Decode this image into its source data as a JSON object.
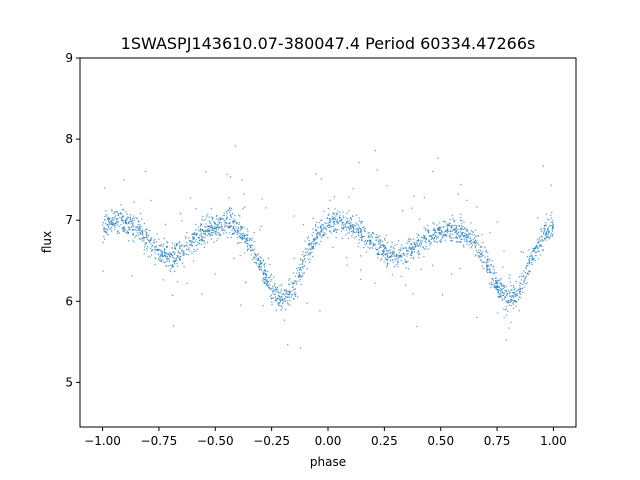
{
  "chart_data": {
    "type": "scatter",
    "title": "1SWASPJ143610.07-380047.4 Period 60334.47266s",
    "xlabel": "phase",
    "ylabel": "flux",
    "xlim": [
      -1.1,
      1.1
    ],
    "ylim": [
      4.45,
      9.0
    ],
    "xticks": [
      -1.0,
      -0.75,
      -0.5,
      -0.25,
      0.0,
      0.25,
      0.5,
      0.75,
      1.0
    ],
    "xtick_labels": [
      "−1.00",
      "−0.75",
      "−0.50",
      "−0.25",
      "0.00",
      "0.25",
      "0.50",
      "0.75",
      "1.00"
    ],
    "yticks": [
      5,
      6,
      7,
      8,
      9
    ],
    "ytick_labels": [
      "5",
      "6",
      "7",
      "8",
      "9"
    ],
    "grid": false,
    "legend": "none",
    "marker_color": "#1f77b4",
    "series": [
      {
        "x": [
          -1.0,
          -0.95,
          -0.9,
          -0.85,
          -0.8,
          -0.75,
          -0.7,
          -0.65,
          -0.6,
          -0.55,
          -0.5,
          -0.45,
          -0.4,
          -0.35,
          -0.3,
          -0.25,
          -0.2,
          -0.15,
          -0.1,
          -0.05,
          0.0,
          0.05,
          0.1,
          0.15,
          0.2,
          0.25,
          0.3,
          0.35,
          0.4,
          0.45,
          0.5,
          0.55,
          0.6,
          0.65,
          0.7,
          0.75,
          0.8,
          0.85,
          0.9,
          0.95,
          1.0
        ],
        "y": [
          6.9,
          7.0,
          7.0,
          6.9,
          6.75,
          6.6,
          6.55,
          6.6,
          6.75,
          6.85,
          6.9,
          6.95,
          6.9,
          6.7,
          6.45,
          6.15,
          6.0,
          6.15,
          6.55,
          6.85,
          6.95,
          7.0,
          6.95,
          6.85,
          6.7,
          6.6,
          6.55,
          6.6,
          6.7,
          6.8,
          6.85,
          6.9,
          6.85,
          6.75,
          6.5,
          6.2,
          6.0,
          6.15,
          6.5,
          6.8,
          6.95
        ]
      }
    ]
  }
}
